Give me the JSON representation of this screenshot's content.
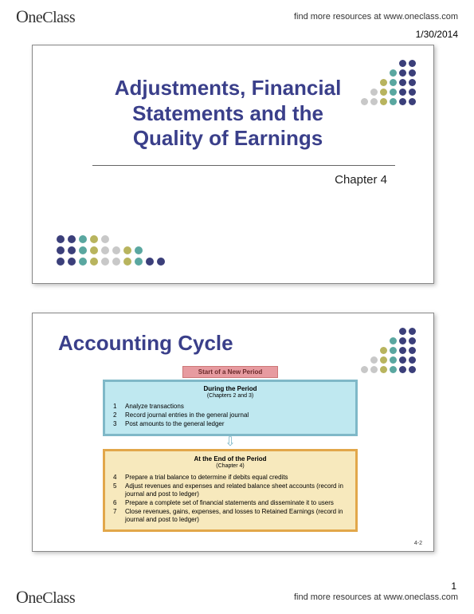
{
  "header": {
    "logo_text": "OneClass",
    "resources_text": "find more resources at www.oneclass.com",
    "date": "1/30/2014"
  },
  "footer": {
    "logo_text": "OneClass",
    "resources_text": "find more resources at www.oneclass.com",
    "page_number": "1"
  },
  "colors": {
    "title": "#3a3f8a",
    "dot_dark": "#3b3f7a",
    "dot_teal": "#5aa7a0",
    "dot_olive": "#b8b45e",
    "dot_grey": "#c8c8c8",
    "box1_bg": "#bfe8f0",
    "box1_border": "#7fb8c8",
    "box2_bg": "#f7e9bd",
    "box2_border": "#e2a74a",
    "banner_bg": "#e79ba0"
  },
  "slide1": {
    "title": "Adjustments, Financial Statements and the Quality of Earnings",
    "subtitle": "Chapter 4",
    "dot_rows_tr": [
      [
        "",
        "",
        "",
        "",
        "dot_dark",
        "dot_dark"
      ],
      [
        "",
        "",
        "",
        "dot_teal",
        "dot_dark",
        "dot_dark"
      ],
      [
        "",
        "",
        "dot_olive",
        "dot_teal",
        "dot_dark",
        "dot_dark"
      ],
      [
        "",
        "dot_grey",
        "dot_olive",
        "dot_teal",
        "dot_dark",
        "dot_dark"
      ],
      [
        "dot_grey",
        "dot_grey",
        "dot_olive",
        "dot_teal",
        "dot_dark",
        "dot_dark"
      ]
    ],
    "dot_rows_bl": [
      [
        "dot_dark",
        "dot_dark",
        "dot_teal",
        "dot_olive",
        "dot_grey",
        "",
        "",
        "",
        "",
        ""
      ],
      [
        "dot_dark",
        "dot_dark",
        "dot_teal",
        "dot_olive",
        "dot_grey",
        "dot_grey",
        "dot_olive",
        "dot_teal",
        "",
        ""
      ],
      [
        "dot_dark",
        "dot_dark",
        "dot_teal",
        "dot_olive",
        "dot_grey",
        "dot_grey",
        "dot_olive",
        "dot_teal",
        "dot_dark",
        "dot_dark"
      ]
    ]
  },
  "slide2": {
    "title": "Accounting Cycle",
    "slide_number": "4-2",
    "banner": "Start of a New Period",
    "box1": {
      "heading": "During the Period",
      "subheading": "(Chapters 2 and 3)",
      "steps": [
        {
          "n": "1",
          "t": "Analyze transactions"
        },
        {
          "n": "2",
          "t": "Record journal entries in the general journal"
        },
        {
          "n": "3",
          "t": "Post amounts to the general ledger"
        }
      ]
    },
    "box2": {
      "heading": "At the End of the Period",
      "subheading": "(Chapter 4)",
      "steps": [
        {
          "n": "4",
          "t": "Prepare a trial balance to determine if debits equal credits"
        },
        {
          "n": "5",
          "t": "Adjust revenues and expenses and related balance sheet accounts (record in journal and post to ledger)"
        },
        {
          "n": "6",
          "t": "Prepare a complete set of financial statements and disseminate it to users"
        },
        {
          "n": "7",
          "t": "Close revenues, gains, expenses, and losses to Retained Earnings (record in journal and post to ledger)"
        }
      ]
    },
    "dot_rows_tr": [
      [
        "",
        "",
        "",
        "",
        "dot_dark",
        "dot_dark"
      ],
      [
        "",
        "",
        "",
        "dot_teal",
        "dot_dark",
        "dot_dark"
      ],
      [
        "",
        "",
        "dot_olive",
        "dot_teal",
        "dot_dark",
        "dot_dark"
      ],
      [
        "",
        "dot_grey",
        "dot_olive",
        "dot_teal",
        "dot_dark",
        "dot_dark"
      ],
      [
        "dot_grey",
        "dot_grey",
        "dot_olive",
        "dot_teal",
        "dot_dark",
        "dot_dark"
      ]
    ]
  }
}
